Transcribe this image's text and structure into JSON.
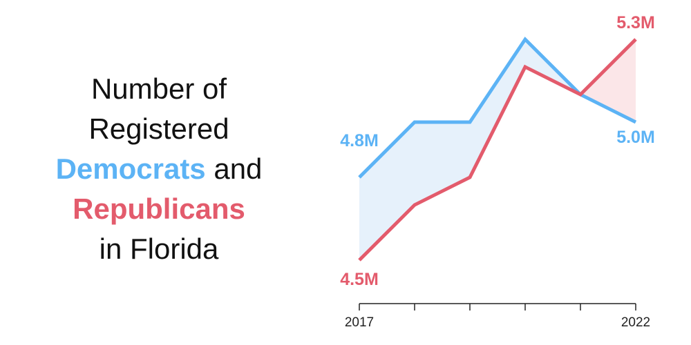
{
  "title": {
    "line1": "Number of",
    "line2": "Registered",
    "democrats": "Democrats",
    "and": "and",
    "republicans": "Republicans",
    "line5": "in Florida"
  },
  "colors": {
    "democrats": "#5cb3f5",
    "republicans": "#e35b6c",
    "democrats_fill": "#e6f1fb",
    "republicans_fill": "#fbe6e8"
  },
  "chart_data": {
    "type": "line",
    "title": "Number of Registered Democrats and Republicans in Florida",
    "x": [
      2017,
      2018,
      2019,
      2020,
      2021,
      2022
    ],
    "xticks_labeled": [
      "2017",
      "2022"
    ],
    "ylim": [
      4.2,
      5.35
    ],
    "unit": "M",
    "series": [
      {
        "name": "Democrats",
        "values": [
          4.8,
          5.0,
          5.0,
          5.3,
          5.1,
          5.0
        ],
        "start_label": "4.8M",
        "end_label": "5.0M"
      },
      {
        "name": "Republicans",
        "values": [
          4.5,
          4.7,
          4.8,
          5.2,
          5.1,
          5.3
        ],
        "start_label": "4.5M",
        "end_label": "5.3M"
      }
    ],
    "fill_between": true,
    "grid": false,
    "legend": "none"
  }
}
